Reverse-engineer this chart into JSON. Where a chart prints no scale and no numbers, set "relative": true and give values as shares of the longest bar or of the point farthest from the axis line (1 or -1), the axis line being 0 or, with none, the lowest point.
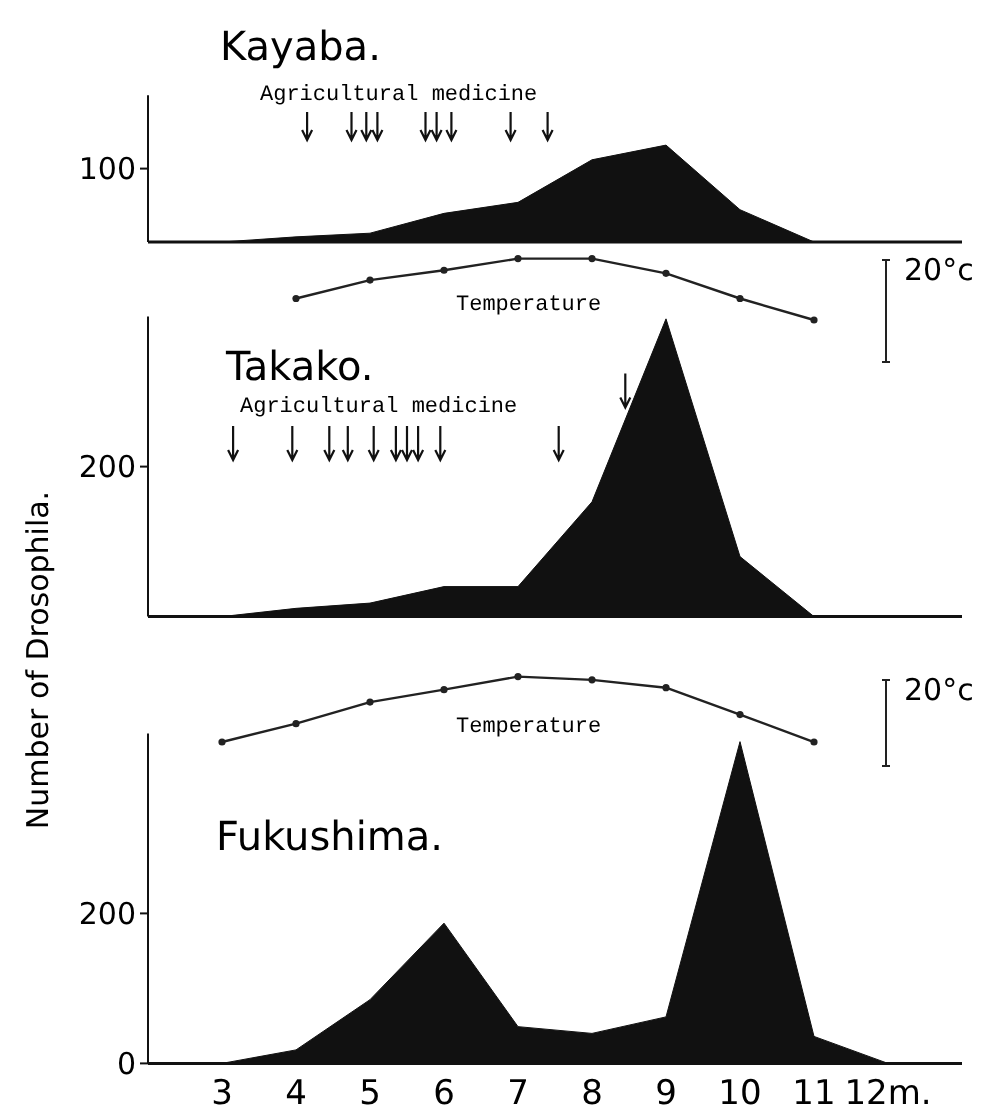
{
  "chart_data": [
    {
      "type": "area",
      "title": "Kayaba.",
      "x": [
        3,
        4,
        5,
        6,
        7,
        8,
        9,
        10,
        11,
        12
      ],
      "values": [
        0,
        7,
        12,
        39,
        54,
        112,
        132,
        44,
        0,
        0
      ],
      "color": "#111111",
      "xlim": [
        2,
        13
      ],
      "ylim": [
        0,
        200
      ],
      "yticks": [
        100
      ],
      "tick_labels": "y",
      "annotations": [
        "Agricultural medicine"
      ],
      "ref_lines": [
        {
          "axis": "x",
          "value": 4.15
        },
        {
          "axis": "x",
          "value": 4.75
        },
        {
          "axis": "x",
          "value": 4.95
        },
        {
          "axis": "x",
          "value": 5.1
        },
        {
          "axis": "x",
          "value": 5.75
        },
        {
          "axis": "x",
          "value": 5.9
        },
        {
          "axis": "x",
          "value": 6.1
        },
        {
          "axis": "x",
          "value": 6.9
        },
        {
          "axis": "x",
          "value": 7.4
        }
      ]
    },
    {
      "type": "line",
      "relative": true,
      "x": [
        4,
        5,
        6,
        7,
        8,
        9,
        10,
        11
      ],
      "values": [
        0.35,
        0.65,
        0.81,
        1,
        1,
        0.76,
        0.35,
        0
      ],
      "color": "#222222",
      "marker": "circle",
      "tick_labels": false,
      "annotations": [
        "Temperature",
        "20°c"
      ]
    },
    {
      "type": "area",
      "title": "Takako.",
      "ylabel": "Number of Drosophila.",
      "x": [
        3,
        4,
        5,
        6,
        7,
        8,
        9,
        10,
        11
      ],
      "values": [
        0,
        11,
        18,
        40,
        40,
        153,
        397,
        80,
        0
      ],
      "color": "#111111",
      "xlim": [
        2,
        13
      ],
      "ylim": [
        0,
        400
      ],
      "yticks": [
        200
      ],
      "tick_labels": "y",
      "annotations": [
        "Agricultural medicine"
      ],
      "ref_lines": [
        {
          "axis": "x",
          "value": 3.15
        },
        {
          "axis": "x",
          "value": 3.95
        },
        {
          "axis": "x",
          "value": 4.45
        },
        {
          "axis": "x",
          "value": 4.7
        },
        {
          "axis": "x",
          "value": 5.05
        },
        {
          "axis": "x",
          "value": 5.35
        },
        {
          "axis": "x",
          "value": 5.5
        },
        {
          "axis": "x",
          "value": 5.65
        },
        {
          "axis": "x",
          "value": 5.95
        },
        {
          "axis": "x",
          "value": 7.55
        },
        {
          "axis": "x",
          "value": 8.45
        }
      ]
    },
    {
      "type": "line",
      "relative": true,
      "x": [
        3,
        4,
        5,
        6,
        7,
        8,
        9,
        10,
        11
      ],
      "values": [
        0,
        0.28,
        0.61,
        0.8,
        1,
        0.95,
        0.83,
        0.42,
        0
      ],
      "color": "#222222",
      "marker": "circle",
      "tick_labels": false,
      "annotations": [
        "Temperature",
        "20°c"
      ]
    },
    {
      "type": "area",
      "title": "Fukushima.",
      "x": [
        3,
        4,
        5,
        6,
        7,
        8,
        9,
        10,
        11,
        12
      ],
      "values": [
        0,
        18,
        85,
        187,
        49,
        40,
        62,
        429,
        36,
        0
      ],
      "color": "#111111",
      "xlim": [
        2,
        13
      ],
      "ylim": [
        0,
        440
      ],
      "yticks": [
        0,
        200
      ],
      "xticks": [
        3,
        4,
        5,
        6,
        7,
        8,
        9,
        10,
        11,
        {
          "value": 12,
          "label": "12m."
        }
      ]
    }
  ]
}
